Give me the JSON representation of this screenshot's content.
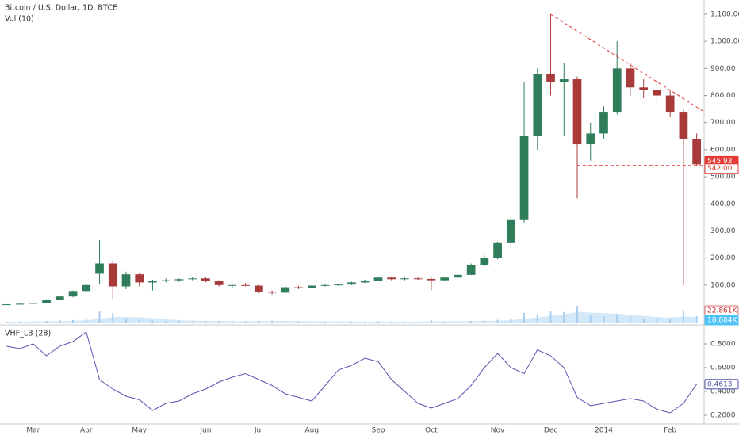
{
  "chart_data": {
    "type": "candlestick",
    "title": "Bitcoin / U.S. Dollar, 1D, BTCE",
    "categories": [
      null,
      null,
      "Mar",
      null,
      null,
      null,
      "Apr",
      null,
      null,
      null,
      "May",
      null,
      null,
      null,
      null,
      "Jun",
      null,
      null,
      null,
      "Jul",
      null,
      null,
      null,
      "Aug",
      null,
      null,
      null,
      null,
      "Sep",
      null,
      null,
      null,
      "Oct",
      null,
      null,
      null,
      null,
      "Nov",
      null,
      null,
      null,
      "Dec",
      null,
      null,
      null,
      "2014",
      null,
      null,
      null,
      null,
      "Feb",
      null,
      null
    ],
    "open": [
      27,
      29,
      31,
      34,
      46,
      58,
      78,
      142,
      180,
      95,
      140,
      110,
      115,
      118,
      122,
      125,
      115,
      100,
      100,
      98,
      75,
      72,
      92,
      90,
      98,
      100,
      102,
      110,
      117,
      128,
      122,
      125,
      123,
      118,
      128,
      138,
      175,
      200,
      255,
      340,
      650,
      880,
      850,
      860,
      620,
      660,
      740,
      900,
      830,
      820,
      800,
      740,
      640
    ],
    "high": [
      30,
      32,
      35,
      48,
      60,
      80,
      105,
      266,
      190,
      150,
      145,
      120,
      125,
      125,
      130,
      130,
      118,
      105,
      108,
      100,
      80,
      95,
      97,
      100,
      103,
      105,
      112,
      120,
      130,
      132,
      128,
      130,
      128,
      130,
      140,
      180,
      210,
      260,
      350,
      850,
      900,
      1100,
      920,
      870,
      700,
      760,
      1000,
      920,
      860,
      850,
      820,
      750,
      660
    ],
    "low": [
      26,
      28,
      30,
      34,
      45,
      55,
      76,
      105,
      50,
      85,
      95,
      80,
      110,
      112,
      118,
      110,
      95,
      90,
      95,
      70,
      65,
      70,
      85,
      88,
      95,
      97,
      100,
      108,
      115,
      118,
      118,
      120,
      80,
      115,
      125,
      137,
      170,
      195,
      250,
      330,
      600,
      800,
      650,
      420,
      560,
      640,
      730,
      800,
      790,
      770,
      720,
      100,
      540
    ],
    "close": [
      29,
      31,
      34,
      46,
      58,
      78,
      100,
      180,
      95,
      140,
      110,
      115,
      118,
      122,
      125,
      115,
      100,
      100,
      98,
      75,
      72,
      92,
      90,
      98,
      100,
      102,
      110,
      117,
      128,
      122,
      125,
      123,
      118,
      128,
      138,
      175,
      200,
      255,
      340,
      650,
      880,
      850,
      860,
      620,
      660,
      740,
      900,
      830,
      820,
      800,
      740,
      640,
      545.93
    ],
    "up_color": "#2f7d5a",
    "down_color": "#a83a3a",
    "ylim": [
      0,
      1100
    ],
    "yticks": [
      {
        "value": 100,
        "label": "100.00"
      },
      {
        "value": 200,
        "label": "200.00"
      },
      {
        "value": 300,
        "label": "300.00"
      },
      {
        "value": 400,
        "label": "400.00"
      },
      {
        "value": 500,
        "label": "500.00"
      },
      {
        "value": 600,
        "label": "600.00"
      },
      {
        "value": 700,
        "label": "700.00"
      },
      {
        "value": 800,
        "label": "800.00"
      },
      {
        "value": 900,
        "label": "900.00"
      },
      {
        "value": 1000,
        "label": "1,000.00"
      },
      {
        "value": 1100,
        "label": "1,100.00"
      }
    ],
    "trendline": {
      "color": "#e53935",
      "end": 740
    },
    "support": {
      "value": 542,
      "label": "542.00",
      "color": "#e53935"
    },
    "volume": {
      "name": "Vol (10)",
      "color": "#a9cdee",
      "ma_color": "#c9e2f6",
      "ylim": [
        0,
        150000
      ],
      "values": [
        3000,
        3500,
        4000,
        6000,
        8000,
        9000,
        12000,
        40000,
        35000,
        15000,
        10000,
        8000,
        6000,
        5000,
        5000,
        5500,
        5000,
        4500,
        4500,
        6000,
        7000,
        5000,
        4000,
        3500,
        3500,
        3000,
        3500,
        3500,
        4000,
        3500,
        3000,
        3000,
        9000,
        4000,
        4500,
        6000,
        8000,
        10000,
        14000,
        35000,
        30000,
        40000,
        38000,
        60000,
        25000,
        22000,
        30000,
        20000,
        15000,
        14000,
        16000,
        45000,
        22861
      ],
      "last_label": "22.861K",
      "ma": [
        3000,
        3200,
        3500,
        4200,
        5200,
        6200,
        7800,
        14000,
        20000,
        20000,
        19000,
        16000,
        12000,
        9000,
        7000,
        6000,
        5500,
        5000,
        4800,
        5000,
        5500,
        5500,
        5000,
        4500,
        4200,
        3800,
        3500,
        3400,
        3500,
        3500,
        3300,
        3200,
        4200,
        4500,
        4600,
        5000,
        5800,
        6800,
        8500,
        14000,
        18000,
        24000,
        30000,
        38000,
        36000,
        34000,
        32000,
        28000,
        24000,
        20000,
        18000,
        22000,
        18884
      ],
      "ma_last_label": "18.884K"
    },
    "indicator": {
      "name": "VHF_LB (28)",
      "color": "#5454b0",
      "ylim": [
        0.1,
        0.9
      ],
      "yticks": [
        {
          "value": 0.2,
          "label": "0.2000"
        },
        {
          "value": 0.4,
          "label": "0.4000"
        },
        {
          "value": 0.6,
          "label": "0.6000"
        },
        {
          "value": 0.8,
          "label": "0.8000"
        }
      ],
      "values": [
        0.78,
        0.76,
        0.8,
        0.7,
        0.78,
        0.82,
        0.9,
        0.5,
        0.42,
        0.36,
        0.33,
        0.24,
        0.3,
        0.32,
        0.38,
        0.42,
        0.48,
        0.52,
        0.55,
        0.5,
        0.45,
        0.38,
        0.35,
        0.32,
        0.45,
        0.58,
        0.62,
        0.68,
        0.65,
        0.5,
        0.4,
        0.3,
        0.26,
        0.3,
        0.34,
        0.45,
        0.6,
        0.72,
        0.6,
        0.55,
        0.75,
        0.7,
        0.6,
        0.35,
        0.28,
        0.3,
        0.32,
        0.34,
        0.32,
        0.25,
        0.22,
        0.3,
        0.4613
      ]
    }
  }
}
